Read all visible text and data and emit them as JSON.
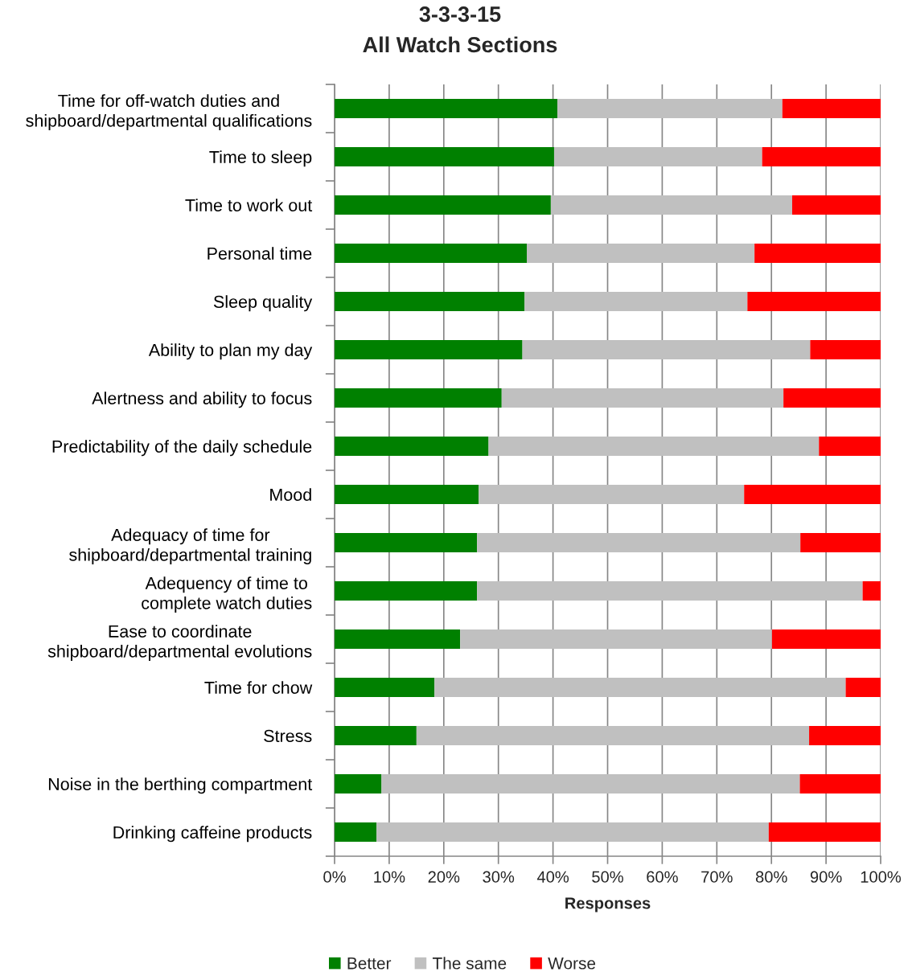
{
  "chart_data": {
    "type": "bar",
    "orientation": "horizontal",
    "stacked": true,
    "title": "3-3-3-15",
    "subtitle": "All Watch Sections",
    "xlabel": "Responses",
    "categories": [
      "Time for off-watch duties and shipboard/departmental qualifications",
      "Time to sleep",
      "Time to work out",
      "Personal time",
      "Sleep quality",
      "Ability to plan my day",
      "Alertness and ability to focus",
      "Predictability of the daily schedule",
      "Mood",
      "Adequacy of time for shipboard/departmental training",
      "Adequency of time to complete watch duties",
      "Ease to coordinate shipboard/departmental evolutions",
      "Time for chow",
      "Stress",
      "Noise in the berthing compartment",
      "Drinking caffeine products"
    ],
    "series": [
      {
        "name": "Better",
        "color": "#008000",
        "values": [
          40.8,
          40.2,
          39.6,
          35.2,
          34.8,
          34.4,
          30.6,
          28.2,
          26.4,
          26.1,
          26.1,
          23.0,
          18.3,
          15.0,
          8.6,
          7.7
        ]
      },
      {
        "name": "The same",
        "color": "#c0c0c0",
        "values": [
          41.2,
          38.1,
          44.2,
          41.7,
          40.8,
          52.7,
          51.6,
          60.5,
          48.6,
          59.2,
          70.6,
          57.1,
          75.3,
          71.9,
          76.6,
          71.8
        ]
      },
      {
        "name": "Worse",
        "color": "#ff0000",
        "values": [
          18.0,
          21.7,
          16.2,
          23.1,
          24.4,
          12.9,
          17.8,
          11.3,
          25.0,
          14.7,
          3.3,
          19.9,
          6.4,
          13.1,
          14.8,
          20.5
        ]
      }
    ],
    "xlim": [
      0,
      100
    ],
    "xticks": [
      {
        "value": 0,
        "label": "0%"
      },
      {
        "value": 10,
        "label": "10%"
      },
      {
        "value": 20,
        "label": "20%"
      },
      {
        "value": 30,
        "label": "30%"
      },
      {
        "value": 40,
        "label": "40%"
      },
      {
        "value": 50,
        "label": "50%"
      },
      {
        "value": 60,
        "label": "60%"
      },
      {
        "value": 70,
        "label": "70%"
      },
      {
        "value": 80,
        "label": "80%"
      },
      {
        "value": 90,
        "label": "90%"
      },
      {
        "value": 100,
        "label": "100%"
      }
    ],
    "grid": "x",
    "legend": "bottom"
  }
}
